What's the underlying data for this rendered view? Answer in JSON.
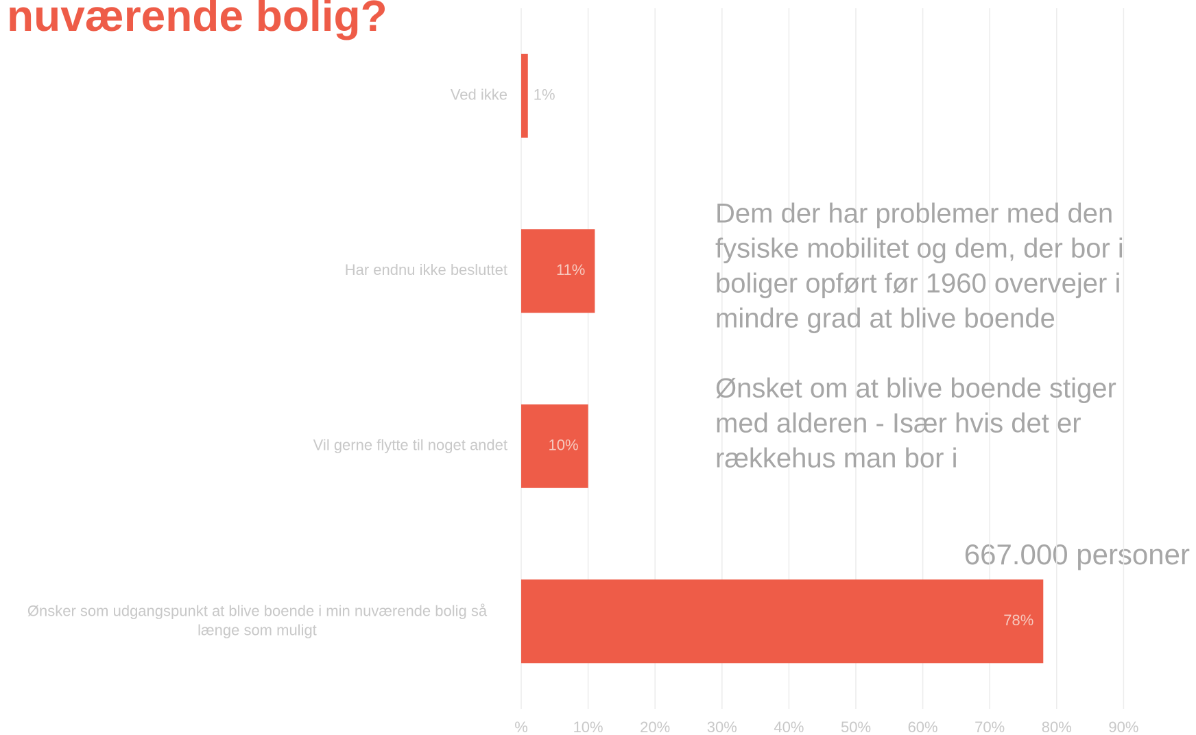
{
  "chart_data": {
    "type": "bar",
    "orientation": "horizontal",
    "title": "nuværende bolig?",
    "categories": [
      "Ved ikke",
      "Har endnu ikke besluttet",
      "Vil gerne flytte til noget andet",
      "Ønsker som udgangspunkt at blive boende i min nuværende bolig så længe som muligt"
    ],
    "values": [
      1,
      11,
      10,
      78
    ],
    "value_labels": [
      "1%",
      "11%",
      "10%",
      "78%"
    ],
    "color": "#ee5c48",
    "xlim": [
      0,
      100
    ],
    "xticks": [
      {
        "value": 0,
        "label": "%"
      },
      {
        "value": 10,
        "label": "10%"
      },
      {
        "value": 20,
        "label": "20%"
      },
      {
        "value": 30,
        "label": "30%"
      },
      {
        "value": 40,
        "label": "40%"
      },
      {
        "value": 50,
        "label": "50%"
      },
      {
        "value": 60,
        "label": "60%"
      },
      {
        "value": 70,
        "label": "70%"
      },
      {
        "value": 80,
        "label": "80%"
      },
      {
        "value": 90,
        "label": "90%"
      }
    ],
    "grid": true,
    "notes": [
      [
        "Dem der har problemer med den",
        "fysiske mobilitet og dem, der bor i",
        "boliger opført før 1960 overvejer i",
        "mindre grad at blive boende"
      ],
      [
        "Ønsket om at blive boende stiger",
        "med alderen - Især hvis det er",
        "rækkehus man bor i"
      ]
    ],
    "callout": "667.000 personer"
  }
}
